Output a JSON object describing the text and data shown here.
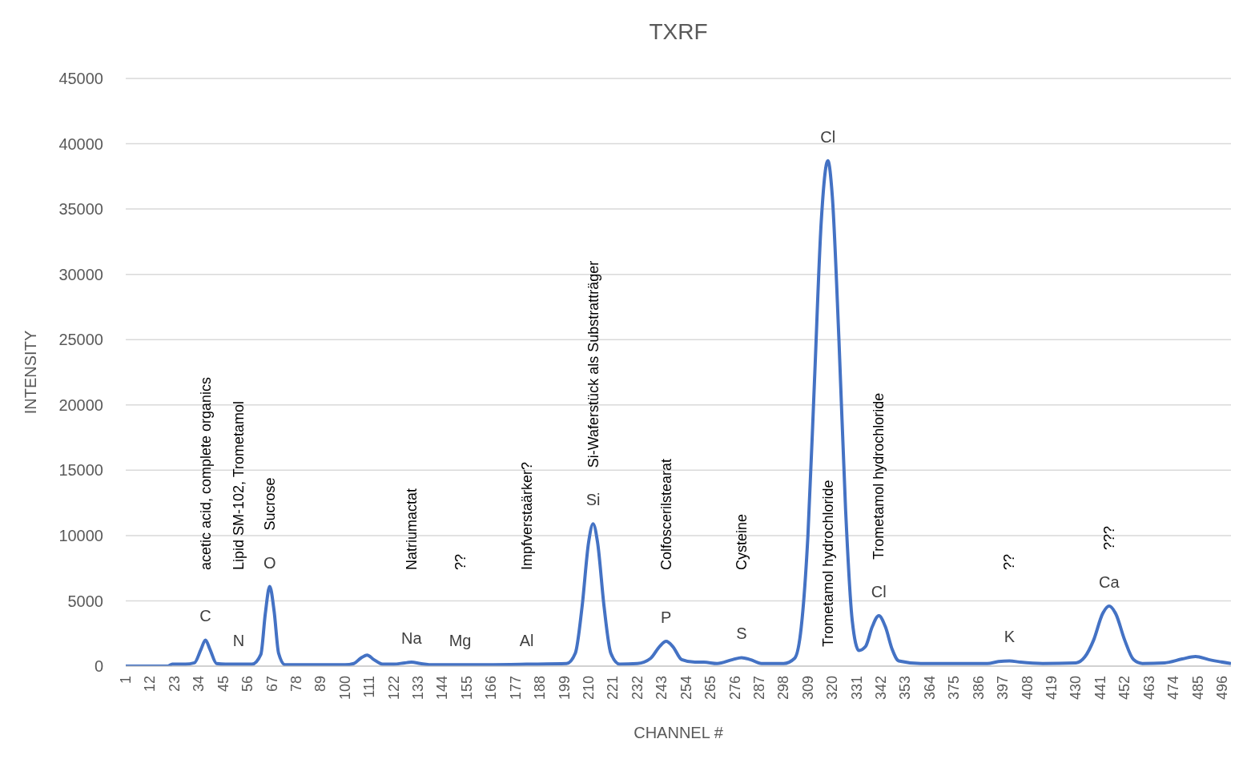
{
  "chart_data": {
    "type": "line",
    "title": "TXRF",
    "xlabel": "CHANNEL #",
    "ylabel": "INTENSITY",
    "x": [
      1,
      20,
      22,
      28,
      32,
      35,
      37,
      39,
      42,
      46,
      52,
      58,
      62,
      64,
      66,
      68,
      70,
      73,
      100,
      104,
      107,
      110,
      113,
      117,
      122,
      127,
      130,
      134,
      140,
      152,
      182,
      200,
      204,
      207,
      210,
      212,
      214,
      217,
      220,
      224,
      232,
      238,
      242,
      245,
      248,
      252,
      258,
      262,
      268,
      275,
      279,
      283,
      288,
      298,
      303,
      306,
      309,
      312,
      315,
      318,
      320,
      323,
      326,
      329,
      332,
      335,
      338,
      341,
      344,
      347,
      350,
      360,
      390,
      395,
      400,
      405,
      415,
      430,
      434,
      438,
      442,
      445,
      448,
      452,
      456,
      460,
      470,
      478,
      484,
      490,
      500
    ],
    "series": [
      {
        "color": "#4472c4",
        "values": [
          0,
          0,
          150,
          150,
          250,
          1300,
          2000,
          1300,
          200,
          150,
          150,
          150,
          900,
          4000,
          6100,
          4200,
          1000,
          100,
          100,
          200,
          600,
          850,
          500,
          150,
          150,
          250,
          300,
          200,
          100,
          100,
          150,
          200,
          1000,
          4500,
          9500,
          10900,
          9500,
          4500,
          1000,
          150,
          200,
          600,
          1500,
          1900,
          1500,
          500,
          300,
          300,
          200,
          500,
          650,
          500,
          200,
          200,
          600,
          3000,
          10000,
          22000,
          34000,
          38700,
          36000,
          25000,
          12000,
          3500,
          1200,
          1500,
          3000,
          3860,
          3000,
          1300,
          400,
          200,
          200,
          350,
          400,
          300,
          200,
          250,
          700,
          2000,
          4000,
          4600,
          4000,
          2000,
          500,
          200,
          250,
          550,
          740,
          500,
          200
        ]
      }
    ],
    "xlim": [
      1,
      500
    ],
    "xticks": [
      1,
      12,
      23,
      34,
      45,
      56,
      67,
      78,
      89,
      100,
      111,
      122,
      133,
      144,
      155,
      166,
      177,
      188,
      199,
      210,
      221,
      232,
      243,
      254,
      265,
      276,
      287,
      298,
      309,
      320,
      331,
      342,
      353,
      364,
      375,
      386,
      397,
      408,
      419,
      430,
      441,
      452,
      463,
      474,
      485,
      496
    ],
    "ylim": [
      0,
      45000
    ],
    "yticks": [
      0,
      5000,
      10000,
      15000,
      20000,
      25000,
      30000,
      35000,
      40000,
      45000
    ],
    "grid": "y",
    "marker": "none",
    "line_style": "solid",
    "annotations": [
      {
        "text": "C",
        "x": 37,
        "y": 2000
      },
      {
        "text": "N",
        "x": 52,
        "y": 150
      },
      {
        "text": "O",
        "x": 66,
        "y": 6100
      },
      {
        "text": "Na",
        "x": 130,
        "y": 300
      },
      {
        "text": "Mg",
        "x": 152,
        "y": 100
      },
      {
        "text": "Al",
        "x": 182,
        "y": 150
      },
      {
        "text": "Si",
        "x": 212,
        "y": 10900
      },
      {
        "text": "P",
        "x": 245,
        "y": 1900
      },
      {
        "text": "S",
        "x": 279,
        "y": 650
      },
      {
        "text": "Cl",
        "x": 318,
        "y": 38700
      },
      {
        "text": "Cl",
        "x": 341,
        "y": 3860
      },
      {
        "text": "K",
        "x": 400,
        "y": 400
      },
      {
        "text": "Ca",
        "x": 445,
        "y": 4600
      },
      "acetic acid, complete organics",
      "Lipid SM-102, Trometamol",
      "Sucrose",
      "Natriumactat",
      "??",
      "Impfverstaärker?",
      "Si-Waferstück als Substratträger",
      "Colfoscerilstearat",
      "Cysteine",
      "Trometamol hydrochloride",
      "Trometamol hydrochloride",
      "??",
      "???"
    ]
  }
}
